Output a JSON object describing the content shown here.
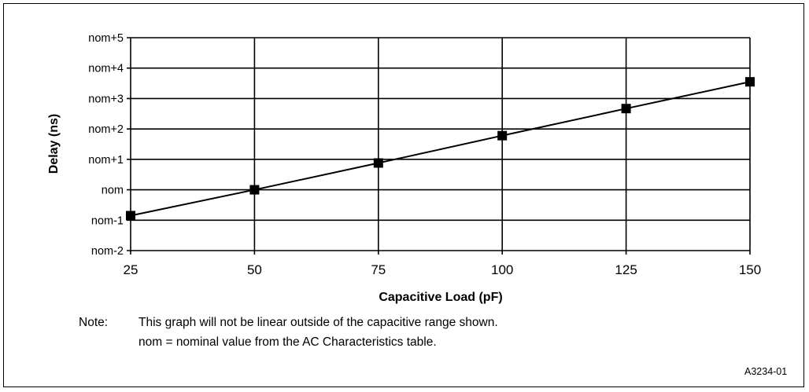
{
  "chart_data": {
    "type": "line",
    "title": "",
    "xlabel": "Capacitive Load (pF)",
    "ylabel": "Delay (ns)",
    "x_ticks": [
      25,
      50,
      75,
      100,
      125,
      150
    ],
    "y_ticks": [
      "nom-2",
      "nom-1",
      "nom",
      "nom+1",
      "nom+2",
      "nom+3",
      "nom+4",
      "nom+5"
    ],
    "xlim": [
      25,
      150
    ],
    "ylim": [
      -2,
      5
    ],
    "grid": true,
    "marker": "square",
    "series": [
      {
        "x": [
          25,
          50,
          75,
          100,
          125,
          150
        ],
        "y": [
          -0.85,
          0.0,
          0.88,
          1.78,
          2.67,
          3.55
        ]
      }
    ]
  },
  "note": {
    "label": "Note:",
    "line1": "This graph will not be linear outside of the capacitive range shown.",
    "line2": "nom = nominal value from the AC Characteristics table."
  },
  "figure_id": "A3234-01"
}
